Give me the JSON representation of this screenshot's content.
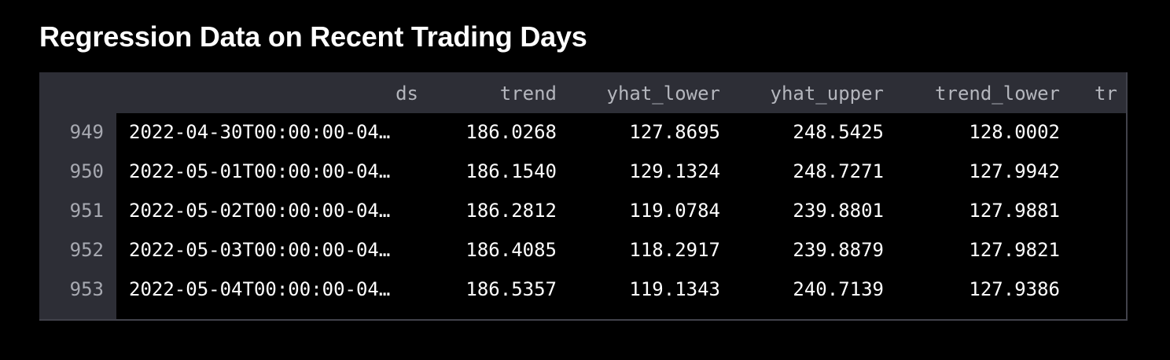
{
  "title": "Regression Data on Recent Trading Days",
  "table": {
    "columns": [
      "ds",
      "trend",
      "yhat_lower",
      "yhat_upper",
      "trend_lower",
      "tr"
    ],
    "rows": [
      {
        "index": "949",
        "ds": "2022-04-30T00:00:00-04…",
        "trend": "186.0268",
        "yhat_lower": "127.8695",
        "yhat_upper": "248.5425",
        "trend_lower": "128.0002"
      },
      {
        "index": "950",
        "ds": "2022-05-01T00:00:00-04…",
        "trend": "186.1540",
        "yhat_lower": "129.1324",
        "yhat_upper": "248.7271",
        "trend_lower": "127.9942"
      },
      {
        "index": "951",
        "ds": "2022-05-02T00:00:00-04…",
        "trend": "186.2812",
        "yhat_lower": "119.0784",
        "yhat_upper": "239.8801",
        "trend_lower": "127.9881"
      },
      {
        "index": "952",
        "ds": "2022-05-03T00:00:00-04…",
        "trend": "186.4085",
        "yhat_lower": "118.2917",
        "yhat_upper": "239.8879",
        "trend_lower": "127.9821"
      },
      {
        "index": "953",
        "ds": "2022-05-04T00:00:00-04…",
        "trend": "186.5357",
        "yhat_lower": "119.1343",
        "yhat_upper": "240.7139",
        "trend_lower": "127.9386"
      }
    ]
  }
}
